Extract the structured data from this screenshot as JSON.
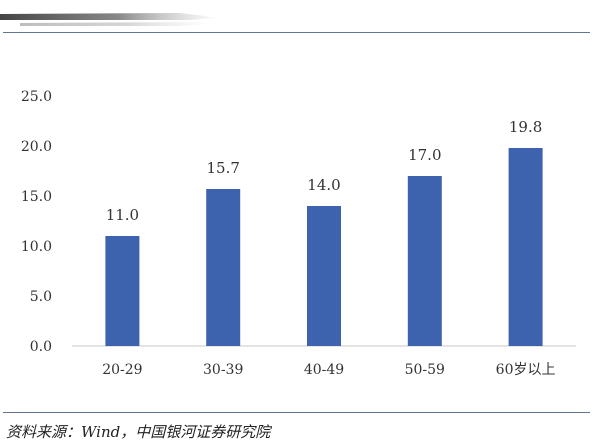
{
  "chart_data": {
    "type": "bar",
    "categories": [
      "20-29",
      "30-39",
      "40-49",
      "50-59",
      "60岁以上"
    ],
    "values": [
      11.0,
      15.7,
      14.0,
      17.0,
      19.8
    ],
    "data_labels": [
      "11.0",
      "15.7",
      "14.0",
      "17.0",
      "19.8"
    ],
    "y_ticks": [
      "0.0",
      "5.0",
      "10.0",
      "15.0",
      "20.0",
      "25.0"
    ],
    "ylim": [
      0,
      25
    ],
    "title": "",
    "xlabel": "",
    "ylabel": "",
    "grid": false,
    "legend": "none",
    "bar_color": "#3d63ae"
  },
  "source_note": "资料来源：Wind，中国银河证券研究院",
  "colors": {
    "rule": "#5f7794",
    "axis": "#c8c8c8",
    "text": "#333333"
  }
}
